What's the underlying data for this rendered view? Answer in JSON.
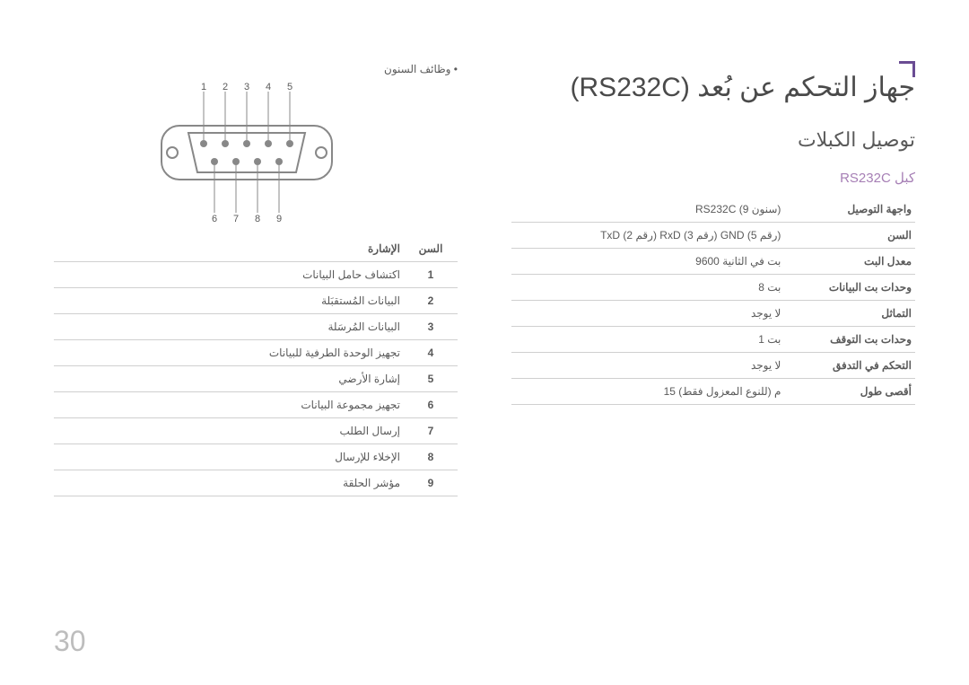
{
  "page_number": "30",
  "main_title": "جهاز التحكم عن بُعد (RS232C)",
  "sub_title": "توصيل الكبلات",
  "cable_label": "كبل RS232C",
  "spec_table": [
    {
      "label": "واجهة التوصيل",
      "value": "RS232C (9 سنون)"
    },
    {
      "label": "السن",
      "value": "TxD (رقم 2) RxD (رقم 3) GND (رقم 5)"
    },
    {
      "label": "معدل البت",
      "value": "9600 بت في الثانية"
    },
    {
      "label": "وحدات بت البيانات",
      "value": "8 بت"
    },
    {
      "label": "التماثل",
      "value": "لا يوجد"
    },
    {
      "label": "وحدات بت التوقف",
      "value": "1 بت"
    },
    {
      "label": "التحكم في التدفق",
      "value": "لا يوجد"
    },
    {
      "label": "أقصى طول",
      "value": "15 م (للنوع المعزول فقط)"
    }
  ],
  "bullet_text": "• وظائف السنون",
  "pin_headers": {
    "pin": "السن",
    "signal": "الإشارة"
  },
  "pin_table": [
    {
      "pin": "1",
      "signal": "اكتشاف حامل البيانات"
    },
    {
      "pin": "2",
      "signal": "البيانات المُستقبَلة"
    },
    {
      "pin": "3",
      "signal": "البيانات المُرسَلة"
    },
    {
      "pin": "4",
      "signal": "تجهيز الوحدة الطرفية للبيانات"
    },
    {
      "pin": "5",
      "signal": "إشارة الأرضي"
    },
    {
      "pin": "6",
      "signal": "تجهيز مجموعة البيانات"
    },
    {
      "pin": "7",
      "signal": "إرسال الطلب"
    },
    {
      "pin": "8",
      "signal": "الإخلاء للإرسال"
    },
    {
      "pin": "9",
      "signal": "مؤشر الحلقة"
    }
  ],
  "connector": {
    "top_labels": [
      "1",
      "2",
      "3",
      "4",
      "5"
    ],
    "bottom_labels": [
      "6",
      "7",
      "8",
      "9"
    ],
    "stroke": "#888888",
    "pin_fill": "#888888"
  }
}
